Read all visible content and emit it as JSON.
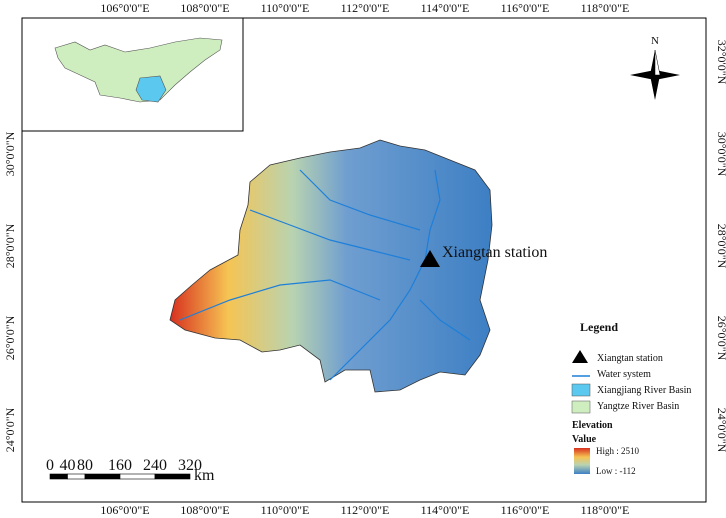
{
  "axes": {
    "top": [
      "106°0'0\"E",
      "108°0'0\"E",
      "110°0'0\"E",
      "112°0'0\"E",
      "114°0'0\"E",
      "116°0'0\"E",
      "118°0'0\"E"
    ],
    "bottom": [
      "106°0'0\"E",
      "108°0'0\"E",
      "110°0'0\"E",
      "112°0'0\"E",
      "114°0'0\"E",
      "116°0'0\"E",
      "118°0'0\"E"
    ],
    "left": [
      "30°0'0\"N",
      "28°0'0\"N",
      "26°0'0\"N",
      "24°0'0\"N"
    ],
    "right": [
      "32°0'0\"N",
      "30°0'0\"N",
      "28°0'0\"N",
      "26°0'0\"N",
      "24°0'0\"N"
    ]
  },
  "north_label": "N",
  "station_label": "Xiangtan station",
  "legend": {
    "title": "Legend",
    "items": [
      "Xiangtan station",
      "Water system",
      "Xiangjiang River Basin",
      "Yangtze River Basin"
    ],
    "elevation_title": "Elevation",
    "value_label": "Value",
    "high": "High : 2510",
    "low": "Low : -112"
  },
  "scale_bar": {
    "ticks": [
      0,
      40,
      80,
      160,
      240,
      320
    ],
    "unit": "km"
  }
}
